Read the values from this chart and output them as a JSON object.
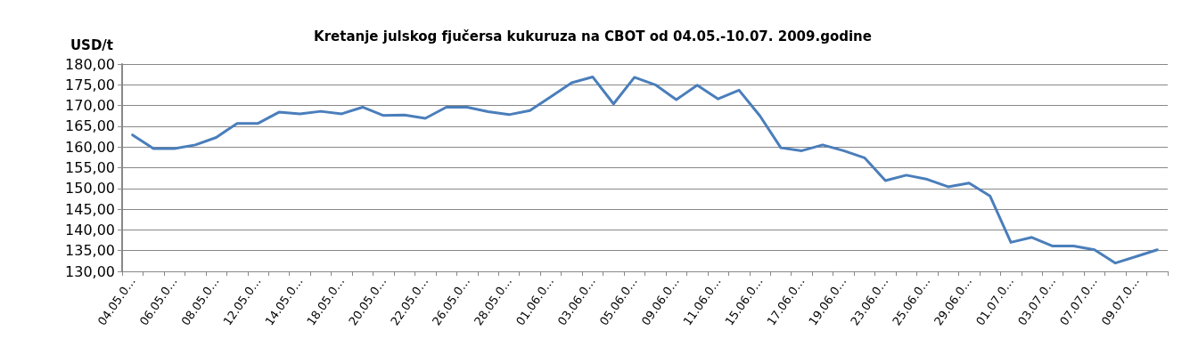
{
  "chart_data": {
    "type": "line",
    "title": "Kretanje julskog fjučersa kukuruza na CBOT od 04.05.-10.07. 2009.godine",
    "ylabel": "USD/t",
    "categories": [
      "04.05.0…",
      null,
      "06.05.0…",
      null,
      "08.05.0…",
      null,
      "12.05.0…",
      null,
      "14.05.0…",
      null,
      "18.05.0…",
      null,
      "20.05.0…",
      null,
      "22.05.0…",
      null,
      "26.05.0…",
      null,
      "28.05.0…",
      null,
      "01.06.0…",
      null,
      "03.06.0…",
      null,
      "05.06.0…",
      null,
      "09.06.0…",
      null,
      "11.06.0…",
      null,
      "15.06.0…",
      null,
      "17.06.0…",
      null,
      "19.06.0…",
      null,
      "23.06.0…",
      null,
      "25.06.0…",
      null,
      "29.06.0…",
      null,
      "01.07.0…",
      null,
      "03.07.0…",
      null,
      "07.07.0…",
      null,
      "09.07.0…",
      null
    ],
    "series": [
      {
        "color": "#4a7ebb",
        "values": [
          162.9,
          159.6,
          159.6,
          160.5,
          162.3,
          165.7,
          165.7,
          168.4,
          168.0,
          168.6,
          168.0,
          169.6,
          167.6,
          167.7,
          166.9,
          169.6,
          169.6,
          168.5,
          167.8,
          168.8,
          172.1,
          175.5,
          176.9,
          170.4,
          176.8,
          175.0,
          171.4,
          174.9,
          171.6,
          173.7,
          167.5,
          159.8,
          159.1,
          160.5,
          159.1,
          157.4,
          151.9,
          153.2,
          152.2,
          150.4,
          151.3,
          148.2,
          137.0,
          138.2,
          136.1,
          136.1,
          135.2,
          132.0,
          133.6,
          135.2
        ]
      }
    ],
    "ylim": [
      130,
      180
    ],
    "yticks": [
      {
        "value": 130,
        "label": "130,00"
      },
      {
        "value": 135,
        "label": "135,00"
      },
      {
        "value": 140,
        "label": "140,00"
      },
      {
        "value": 145,
        "label": "145,00"
      },
      {
        "value": 150,
        "label": "150,00"
      },
      {
        "value": 155,
        "label": "155,00"
      },
      {
        "value": 160,
        "label": "160,00"
      },
      {
        "value": 165,
        "label": "165,00"
      },
      {
        "value": 170,
        "label": "170,00"
      },
      {
        "value": 175,
        "label": "175,00"
      },
      {
        "value": 180,
        "label": "180,00"
      }
    ],
    "grid": "y",
    "marker": "none",
    "line_style": "solid"
  }
}
